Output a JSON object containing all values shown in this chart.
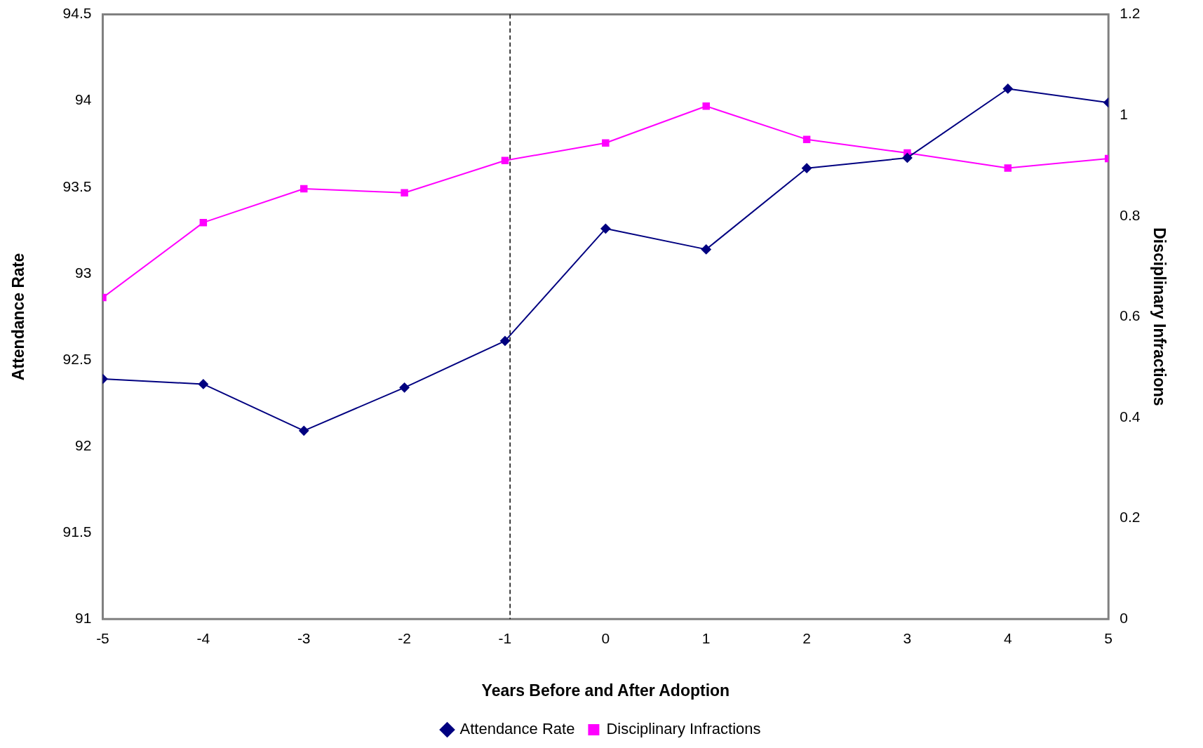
{
  "chart_data": {
    "type": "line",
    "xlabel": "Years Before and After Adoption",
    "ylabel": "Attendance Rate",
    "y2label": "Disciplinary Infractions",
    "x": [
      -5,
      -4,
      -3,
      -2,
      -1,
      0,
      1,
      2,
      3,
      4,
      5
    ],
    "xlim": [
      -5,
      5
    ],
    "xticks": [
      -5,
      -4,
      -3,
      -2,
      -1,
      0,
      1,
      2,
      3,
      4,
      5
    ],
    "ylim": [
      91,
      94.5
    ],
    "yticks": [
      91,
      91.5,
      92,
      92.5,
      93,
      93.5,
      94,
      94.5
    ],
    "y2lim": [
      0,
      1.2
    ],
    "y2ticks": [
      0,
      0.2,
      0.4,
      0.6,
      0.8,
      1,
      1.2
    ],
    "series": [
      {
        "name": "Attendance Rate",
        "color": "#000080",
        "marker": "diamond",
        "values": [
          92.39,
          92.36,
          92.09,
          92.34,
          92.61,
          93.26,
          93.14,
          93.61,
          93.67,
          94.07,
          93.99
        ]
      },
      {
        "name": "Disciplinary Infractions",
        "color": "#ff00ff",
        "marker": "square",
        "axis": "y2",
        "values": [
          0.638,
          0.787,
          0.854,
          0.846,
          0.91,
          0.945,
          1.018,
          0.952,
          0.925,
          0.895,
          0.914
        ]
      }
    ],
    "ref_lines": [
      {
        "axis": "x",
        "value": -0.95,
        "color": "#000000",
        "line_style": "dashed"
      }
    ],
    "grid": false,
    "legend": "bottom",
    "line_style": "solid"
  }
}
